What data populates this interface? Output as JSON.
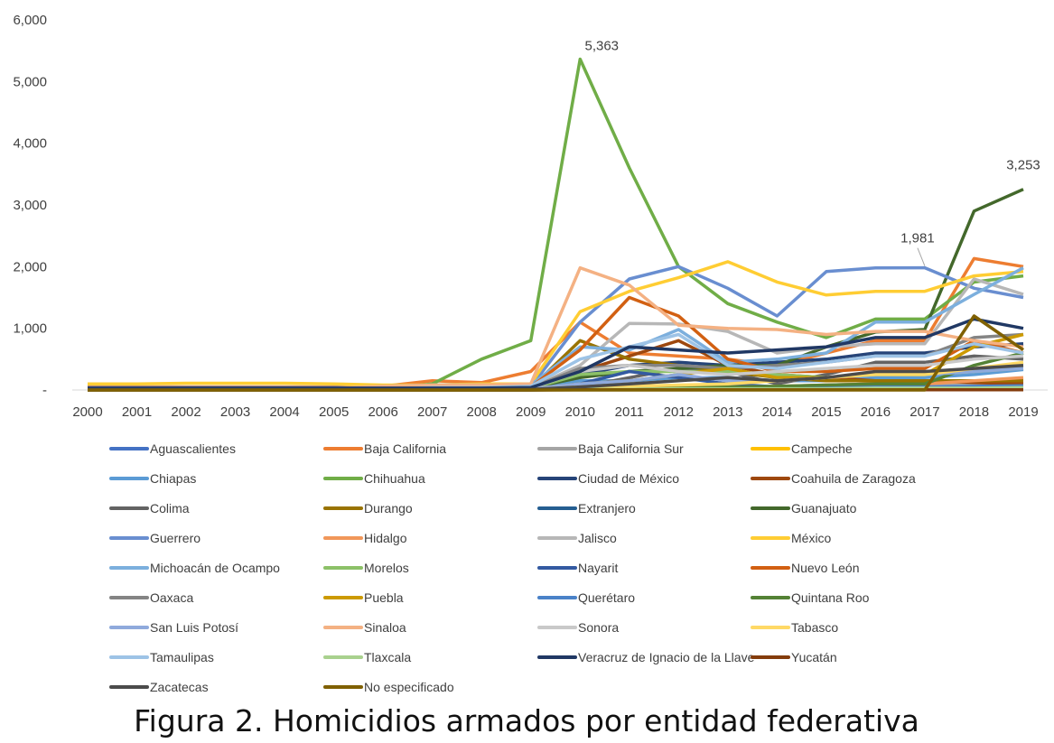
{
  "chart_data": {
    "type": "line",
    "title": "",
    "xlabel": "",
    "ylabel": "",
    "caption": "Figura 2. Homicidios armados por entidad federativa",
    "ylim": [
      0,
      6000
    ],
    "yticks": [
      0,
      1000,
      2000,
      3000,
      4000,
      5000,
      6000
    ],
    "ytick_labels": [
      "-",
      "1,000",
      "2,000",
      "3,000",
      "4,000",
      "5,000",
      "6,000"
    ],
    "x": [
      "2000",
      "2001",
      "2002",
      "2003",
      "2004",
      "2005",
      "2006",
      "2007",
      "2008",
      "2009",
      "2010",
      "2011",
      "2012",
      "2013",
      "2014",
      "2015",
      "2016",
      "2017",
      "2018",
      "2019"
    ],
    "grid": false,
    "legend_position": "bottom",
    "annotations": [
      {
        "series": "Chihuahua",
        "x": "2010",
        "text": "5,363"
      },
      {
        "series": "Guerrero",
        "x": "2017",
        "text": "1,981"
      },
      {
        "series": "Guanajuato",
        "x": "2019",
        "text": "3,253"
      }
    ],
    "series": [
      {
        "name": "Aguascalientes",
        "color": "#4472C4",
        "values": [
          5,
          5,
          5,
          5,
          5,
          5,
          5,
          5,
          5,
          5,
          20,
          30,
          40,
          30,
          30,
          40,
          50,
          50,
          60,
          70
        ]
      },
      {
        "name": "Baja California",
        "color": "#ED7D31",
        "values": [
          50,
          50,
          50,
          50,
          50,
          50,
          60,
          150,
          120,
          300,
          1100,
          600,
          550,
          500,
          400,
          600,
          800,
          800,
          2130,
          2000
        ]
      },
      {
        "name": "Baja California Sur",
        "color": "#A5A5A5",
        "values": [
          5,
          5,
          5,
          5,
          5,
          5,
          5,
          5,
          5,
          5,
          20,
          30,
          40,
          40,
          50,
          80,
          100,
          100,
          80,
          60
        ]
      },
      {
        "name": "Campeche",
        "color": "#FFC000",
        "values": [
          10,
          10,
          10,
          10,
          10,
          10,
          10,
          10,
          10,
          10,
          20,
          20,
          20,
          20,
          20,
          20,
          30,
          30,
          40,
          40
        ]
      },
      {
        "name": "Chiapas",
        "color": "#5B9BD5",
        "values": [
          20,
          20,
          20,
          20,
          20,
          20,
          20,
          30,
          30,
          40,
          150,
          150,
          200,
          200,
          150,
          150,
          200,
          200,
          250,
          330
        ]
      },
      {
        "name": "Chihuahua",
        "color": "#70AD47",
        "values": [
          20,
          20,
          20,
          20,
          20,
          20,
          20,
          100,
          500,
          800,
          5363,
          3600,
          2000,
          1400,
          1100,
          850,
          1150,
          1150,
          1750,
          1850
        ]
      },
      {
        "name": "Ciudad de México",
        "color": "#264478",
        "values": [
          30,
          30,
          30,
          30,
          30,
          30,
          30,
          30,
          30,
          40,
          250,
          400,
          450,
          400,
          450,
          500,
          600,
          600,
          700,
          750
        ]
      },
      {
        "name": "Coahuila de Zaragoza",
        "color": "#9E480E",
        "values": [
          10,
          10,
          10,
          10,
          10,
          10,
          10,
          20,
          20,
          30,
          300,
          550,
          800,
          400,
          250,
          200,
          150,
          150,
          120,
          100
        ]
      },
      {
        "name": "Colima",
        "color": "#636363",
        "values": [
          5,
          5,
          5,
          5,
          5,
          5,
          5,
          5,
          5,
          10,
          50,
          200,
          350,
          300,
          100,
          250,
          450,
          450,
          550,
          500
        ]
      },
      {
        "name": "Durango",
        "color": "#997300",
        "values": [
          10,
          10,
          10,
          10,
          10,
          10,
          10,
          20,
          20,
          30,
          800,
          500,
          400,
          300,
          200,
          150,
          150,
          150,
          150,
          150
        ]
      },
      {
        "name": "Extranjero",
        "color": "#255E91",
        "values": [
          0,
          0,
          0,
          0,
          0,
          0,
          0,
          0,
          0,
          0,
          10,
          10,
          10,
          10,
          10,
          10,
          10,
          10,
          10,
          10
        ]
      },
      {
        "name": "Guanajuato",
        "color": "#43682B",
        "values": [
          30,
          30,
          30,
          30,
          30,
          30,
          30,
          30,
          30,
          40,
          200,
          300,
          350,
          400,
          400,
          700,
          940,
          980,
          2900,
          3253
        ]
      },
      {
        "name": "Guerrero",
        "color": "#698ED0",
        "values": [
          40,
          40,
          40,
          40,
          40,
          40,
          40,
          50,
          50,
          50,
          1100,
          1800,
          2000,
          1650,
          1200,
          1920,
          1980,
          1981,
          1650,
          1500
        ]
      },
      {
        "name": "Hidalgo",
        "color": "#F1975A",
        "values": [
          10,
          10,
          10,
          10,
          10,
          10,
          10,
          10,
          10,
          10,
          30,
          40,
          50,
          50,
          60,
          80,
          100,
          100,
          150,
          200
        ]
      },
      {
        "name": "Jalisco",
        "color": "#B7B7B7",
        "values": [
          30,
          30,
          30,
          30,
          30,
          30,
          30,
          30,
          30,
          40,
          400,
          1080,
          1070,
          950,
          600,
          700,
          750,
          750,
          1800,
          1550
        ]
      },
      {
        "name": "México",
        "color": "#FFCD33",
        "values": [
          100,
          100,
          110,
          110,
          110,
          100,
          80,
          80,
          100,
          100,
          1270,
          1600,
          1820,
          2080,
          1750,
          1540,
          1600,
          1600,
          1850,
          1920
        ]
      },
      {
        "name": "Michoacán de Ocampo",
        "color": "#7CAFDD",
        "values": [
          30,
          30,
          30,
          30,
          30,
          30,
          60,
          80,
          80,
          80,
          700,
          650,
          980,
          450,
          500,
          600,
          1100,
          1100,
          1550,
          1980
        ]
      },
      {
        "name": "Morelos",
        "color": "#8CC168",
        "values": [
          10,
          10,
          10,
          10,
          10,
          10,
          10,
          20,
          20,
          30,
          250,
          300,
          300,
          300,
          250,
          200,
          250,
          250,
          300,
          350
        ]
      },
      {
        "name": "Nayarit",
        "color": "#335AA1",
        "values": [
          5,
          5,
          5,
          5,
          5,
          5,
          5,
          5,
          5,
          10,
          100,
          300,
          200,
          100,
          50,
          30,
          30,
          30,
          50,
          60
        ]
      },
      {
        "name": "Nuevo León",
        "color": "#D26012",
        "values": [
          10,
          10,
          10,
          10,
          10,
          10,
          10,
          20,
          20,
          50,
          650,
          1500,
          1200,
          500,
          300,
          300,
          350,
          350,
          800,
          600
        ]
      },
      {
        "name": "Oaxaca",
        "color": "#848484",
        "values": [
          30,
          30,
          30,
          30,
          30,
          30,
          30,
          30,
          30,
          40,
          350,
          400,
          400,
          350,
          400,
          450,
          550,
          550,
          850,
          900
        ]
      },
      {
        "name": "Puebla",
        "color": "#CC9A00",
        "values": [
          10,
          10,
          10,
          10,
          10,
          10,
          10,
          10,
          10,
          20,
          100,
          150,
          250,
          350,
          200,
          200,
          250,
          250,
          700,
          900
        ]
      },
      {
        "name": "Querétaro",
        "color": "#4A82C8",
        "values": [
          0,
          0,
          0,
          0,
          0,
          0,
          0,
          0,
          0,
          5,
          20,
          20,
          30,
          30,
          30,
          40,
          50,
          50,
          60,
          70
        ]
      },
      {
        "name": "Quintana Roo",
        "color": "#548235",
        "values": [
          5,
          5,
          5,
          5,
          5,
          5,
          5,
          5,
          5,
          10,
          30,
          40,
          50,
          50,
          60,
          80,
          100,
          100,
          400,
          600
        ]
      },
      {
        "name": "San Luis Potosí",
        "color": "#8FAADC",
        "values": [
          10,
          10,
          10,
          10,
          10,
          10,
          10,
          10,
          10,
          20,
          100,
          150,
          250,
          150,
          150,
          200,
          250,
          250,
          300,
          350
        ]
      },
      {
        "name": "Sinaloa",
        "color": "#F4B183",
        "values": [
          30,
          30,
          30,
          30,
          30,
          30,
          60,
          80,
          80,
          100,
          1980,
          1700,
          1050,
          1000,
          980,
          900,
          950,
          950,
          800,
          700
        ]
      },
      {
        "name": "Sonora",
        "color": "#C9C9C9",
        "values": [
          10,
          10,
          10,
          10,
          10,
          10,
          10,
          20,
          20,
          30,
          300,
          400,
          300,
          250,
          300,
          350,
          400,
          400,
          500,
          550
        ]
      },
      {
        "name": "Tabasco",
        "color": "#FFD966",
        "values": [
          5,
          5,
          5,
          5,
          5,
          5,
          5,
          5,
          5,
          10,
          50,
          60,
          80,
          100,
          150,
          200,
          250,
          250,
          350,
          450
        ]
      },
      {
        "name": "Tamaulipas",
        "color": "#9DC3E6",
        "values": [
          20,
          20,
          20,
          20,
          20,
          20,
          20,
          40,
          40,
          60,
          500,
          700,
          900,
          400,
          350,
          450,
          550,
          550,
          750,
          600
        ]
      },
      {
        "name": "Tlaxcala",
        "color": "#A9D18E",
        "values": [
          0,
          0,
          0,
          0,
          0,
          0,
          0,
          0,
          0,
          5,
          10,
          10,
          20,
          20,
          20,
          20,
          30,
          30,
          30,
          40
        ]
      },
      {
        "name": "Veracruz de Ignacio de la Llave",
        "color": "#203864",
        "values": [
          30,
          30,
          30,
          30,
          30,
          30,
          30,
          30,
          30,
          40,
          300,
          700,
          650,
          600,
          650,
          700,
          850,
          850,
          1150,
          1000
        ]
      },
      {
        "name": "Yucatán",
        "color": "#843C0C",
        "values": [
          0,
          0,
          0,
          0,
          0,
          0,
          0,
          0,
          0,
          0,
          5,
          5,
          5,
          5,
          5,
          5,
          5,
          5,
          5,
          5
        ]
      },
      {
        "name": "Zacatecas",
        "color": "#4B4B4B",
        "values": [
          5,
          5,
          5,
          5,
          5,
          5,
          5,
          5,
          5,
          10,
          50,
          100,
          150,
          200,
          150,
          200,
          300,
          300,
          350,
          400
        ]
      },
      {
        "name": "No especificado",
        "color": "#7F6000",
        "values": [
          0,
          0,
          0,
          0,
          0,
          0,
          0,
          0,
          0,
          0,
          0,
          0,
          0,
          0,
          0,
          0,
          0,
          0,
          1200,
          650
        ]
      }
    ]
  }
}
